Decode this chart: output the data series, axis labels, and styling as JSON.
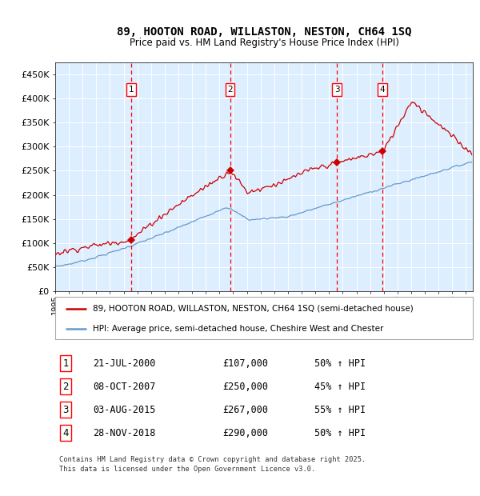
{
  "title": "89, HOOTON ROAD, WILLASTON, NESTON, CH64 1SQ",
  "subtitle": "Price paid vs. HM Land Registry's House Price Index (HPI)",
  "ylim": [
    0,
    475000
  ],
  "yticks": [
    0,
    50000,
    100000,
    150000,
    200000,
    250000,
    300000,
    350000,
    400000,
    450000
  ],
  "ytick_labels": [
    "£0",
    "£50K",
    "£100K",
    "£150K",
    "£200K",
    "£250K",
    "£300K",
    "£350K",
    "£400K",
    "£450K"
  ],
  "xlim_start": 1995.0,
  "xlim_end": 2025.5,
  "sale_color": "#cc0000",
  "hpi_color": "#6699cc",
  "background_color": "#ddeeff",
  "transactions": [
    {
      "num": 1,
      "date_str": "21-JUL-2000",
      "price": 107000,
      "pct": "50%",
      "year": 2000.55
    },
    {
      "num": 2,
      "date_str": "08-OCT-2007",
      "price": 250000,
      "pct": "45%",
      "year": 2007.77
    },
    {
      "num": 3,
      "date_str": "03-AUG-2015",
      "price": 267000,
      "pct": "55%",
      "year": 2015.59
    },
    {
      "num": 4,
      "date_str": "28-NOV-2018",
      "price": 290000,
      "pct": "50%",
      "year": 2018.91
    }
  ],
  "footer": "Contains HM Land Registry data © Crown copyright and database right 2025.\nThis data is licensed under the Open Government Licence v3.0.",
  "legend_entries": [
    {
      "label": "89, HOOTON ROAD, WILLASTON, NESTON, CH64 1SQ (semi-detached house)",
      "color": "#cc0000"
    },
    {
      "label": "HPI: Average price, semi-detached house, Cheshire West and Chester",
      "color": "#6699cc"
    }
  ]
}
